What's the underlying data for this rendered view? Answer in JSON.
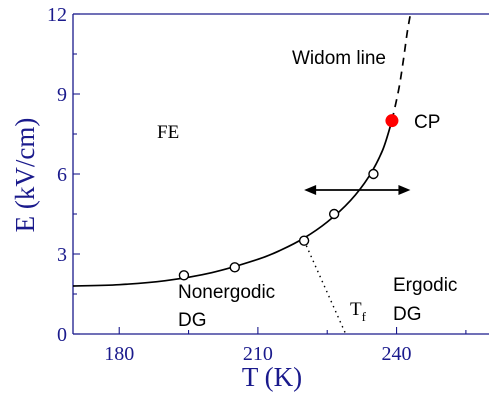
{
  "chart_data": {
    "type": "line",
    "title": "",
    "xlabel": "T (K)",
    "ylabel": "E (kV/cm)",
    "xlim": [
      170,
      260
    ],
    "ylim": [
      0,
      12
    ],
    "xticks": [
      180,
      210,
      240
    ],
    "yticks": [
      0,
      3,
      6,
      9,
      12
    ],
    "grid": false,
    "legend": "none",
    "series": [
      {
        "style": "solid",
        "x": [
          170,
          180,
          190,
          200,
          210,
          215,
          220,
          225,
          230,
          234,
          237,
          239
        ],
        "y": [
          1.8,
          1.85,
          2.0,
          2.3,
          2.8,
          3.15,
          3.6,
          4.2,
          5.0,
          5.9,
          6.9,
          8.0
        ]
      },
      {
        "style": "dashed",
        "x": [
          239,
          240.5,
          241.5,
          242.3,
          243
        ],
        "y": [
          8.0,
          9.2,
          10.3,
          11.3,
          12.0
        ]
      },
      {
        "style": "dotted",
        "x": [
          220,
          229
        ],
        "y": [
          3.5,
          0
        ]
      },
      {
        "style": "open-markers",
        "x": [
          194,
          205,
          220,
          226.5,
          235
        ],
        "y": [
          2.2,
          2.5,
          3.5,
          4.5,
          6.0
        ]
      },
      {
        "style": "filled-marker",
        "x": [
          239
        ],
        "y": [
          8.0
        ]
      }
    ],
    "double_arrow": {
      "x": [
        220,
        243
      ],
      "y": 5.4
    },
    "annotations": {
      "widom": "Widom line",
      "cp": "CP",
      "fe": "FE",
      "nonergodic_1": "Nonergodic",
      "nonergodic_2": "DG",
      "ergodic_1": "Ergodic",
      "ergodic_2": "DG",
      "tf_main": "T",
      "tf_sub": "f"
    },
    "colors": {
      "axis": "#1a1a8c",
      "critical_point": "#ff0000"
    }
  }
}
